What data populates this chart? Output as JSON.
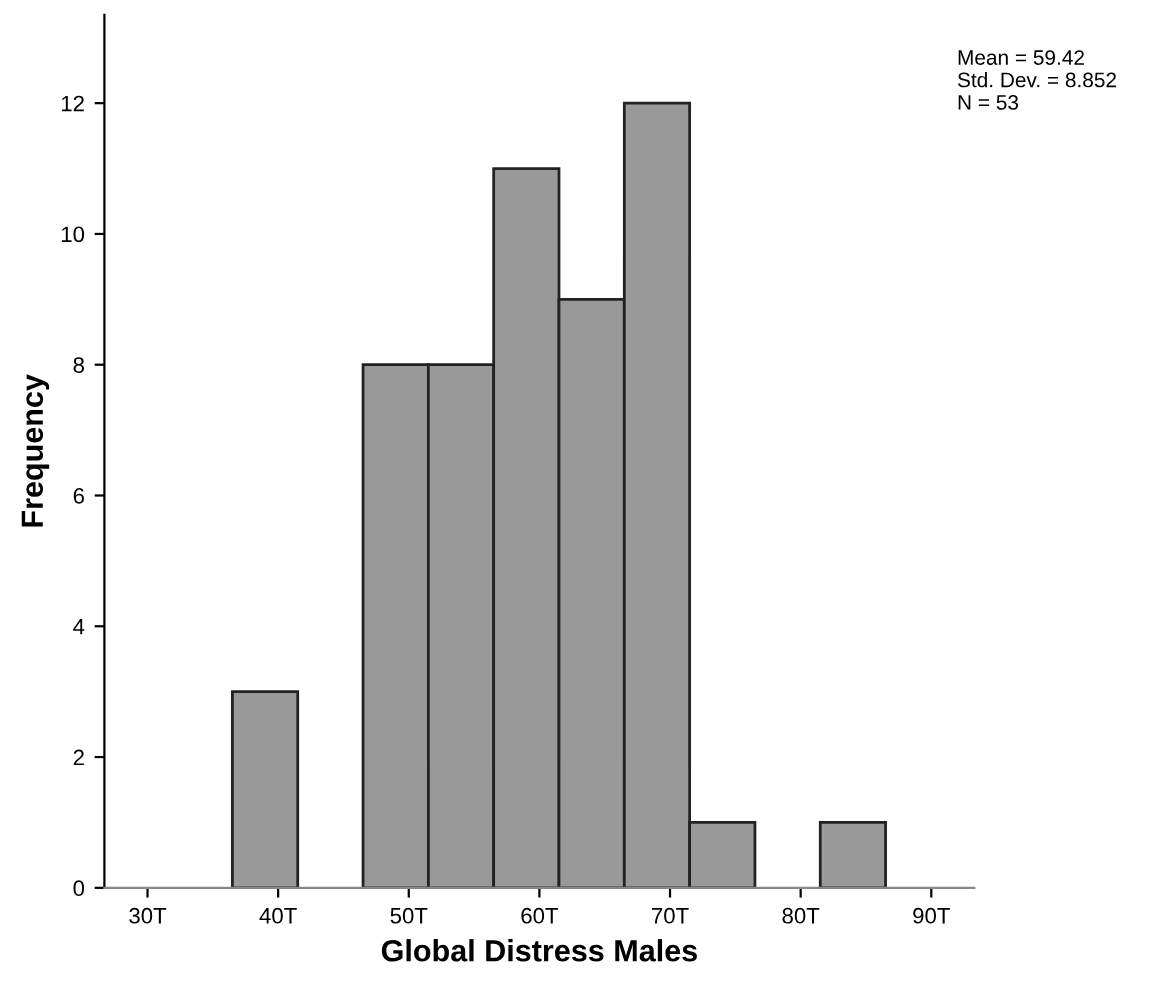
{
  "chart_data": {
    "type": "histogram",
    "xlabel": "Global Distress Males",
    "ylabel": "Frequency",
    "bins": [
      36.5,
      41.5,
      46.5,
      51.5,
      56.5,
      61.5,
      66.5,
      71.5,
      76.5,
      81.5,
      86.5
    ],
    "values": [
      3,
      0,
      8,
      8,
      11,
      9,
      12,
      1,
      0,
      1
    ],
    "color": "#999999",
    "xlim": [
      26.7,
      93.3
    ],
    "xticks": [
      {
        "value": 30,
        "label": "30T"
      },
      {
        "value": 40,
        "label": "40T"
      },
      {
        "value": 50,
        "label": "50T"
      },
      {
        "value": 60,
        "label": "60T"
      },
      {
        "value": 70,
        "label": "70T"
      },
      {
        "value": 80,
        "label": "80T"
      },
      {
        "value": 90,
        "label": "90T"
      }
    ],
    "ylim": [
      0,
      13.35
    ],
    "yticks": [
      0,
      2,
      4,
      6,
      8,
      10,
      12
    ],
    "grid": false,
    "legend": false,
    "annotations": [
      "Mean = 59.42\nStd. Dev. = 8.852\nN = 53"
    ]
  }
}
